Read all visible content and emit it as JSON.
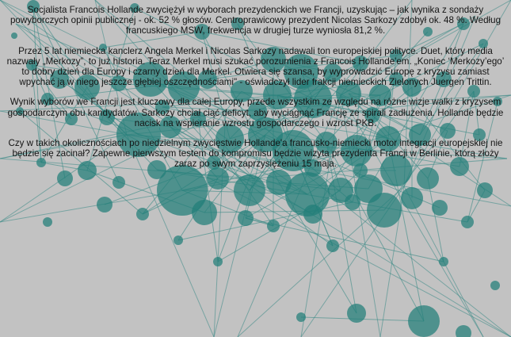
{
  "article": {
    "paragraphs": [
      "Socjalista Francois Hollande zwyciężył w wyborach prezydenckich we Francji, uzyskując – jak wynika z sondaży powyborczych opinii publicznej - ok. 52 % głosów. Centroprawicowy prezydent Nicolas Sarkozy zdobył ok. 48 %. Według francuskiego MSW, frekwencja w drugiej turze wyniosła 81,2 %.",
      "Przez 5 lat niemiecka kanclerz Angela Merkel i Nicolas Sarkozy nadawali ton europejskiej polityce. Duet, który media nazwały „Merkozy”, to już historia. Teraz Merkel musi szukać porozumienia z Francois Hollande'em. „Koniec ‘Merkozy’ego’ to dobry dzień dla Europy i czarny dzień dla Merkel. Otwiera się szansa, by wyprowadzić Europę z kryzysu zamiast wpychać ją w niego jeszcze głębiej oszczędnościami\" - oświadczył lider frakcji niemieckich Zielonych Juergen Trittin.",
      "Wynik wyborów we Francji jest kluczowy dla całej Europy, przede wszystkim ze względu na różne wizje walki z kryzysem gospodarczym obu kandydatów. Sarkozy chciał ciąć deficyt, aby wyciągnąć Francję ze spirali zadłużenia. Hollande będzie nacisk na wspieranie wzrostu gospodarczego i wzrost PKB.",
      "Czy w takich okolicznościach po niedzielnym zwycięstwie Hollande'a francusko-niemiecki motor integracji europejskiej nie będzie się zacinał? Zapewne pierwszym testem do kompromisu będzie wizyta prezydenta Francji w Berlinie, którą złoży zaraz po swym zaprzysiężeniu 15 maja."
    ]
  },
  "colors": {
    "background": "#c2c2c2",
    "node_fill": "#217e79",
    "edge_stroke": "#3a8a86",
    "text": "#141414"
  }
}
